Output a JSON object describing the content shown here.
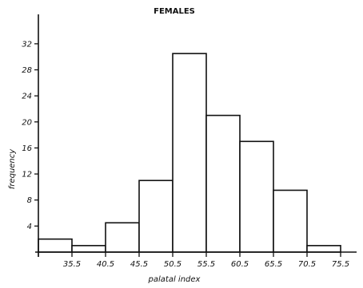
{
  "chart_data": {
    "type": "bar",
    "title": "FEMALES",
    "xlabel": "palatal index",
    "ylabel": "frequency",
    "ylim": [
      0,
      34
    ],
    "y_ticks": [
      4,
      8,
      12,
      16,
      20,
      24,
      28,
      32
    ],
    "bin_edges": [
      30.5,
      35.5,
      40.5,
      45.5,
      50.5,
      55.5,
      60.5,
      65.5,
      70.5,
      75.5
    ],
    "x_tick_labels": [
      "35.5",
      "40.5",
      "45.5",
      "50.5",
      "55.5",
      "60.5",
      "65.5",
      "70.5",
      "75.5"
    ],
    "values": [
      2,
      1,
      4.5,
      11,
      30.5,
      21,
      17,
      9.5,
      1
    ],
    "grid": false,
    "legend": "none"
  }
}
